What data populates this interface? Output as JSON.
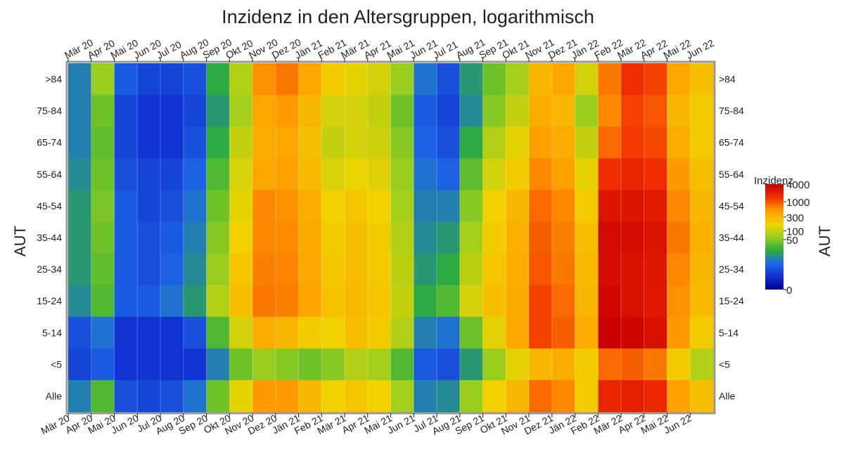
{
  "chart_data": {
    "type": "heatmap",
    "title": "Inzidenz in den Altersgruppen, logarithmisch",
    "ylabel_left": "AUT",
    "ylabel_right": "AUT",
    "colorbar": {
      "title": "Inzidenz",
      "ticks": [
        "4000",
        "1000",
        "300",
        "100",
        "50",
        "0"
      ],
      "tick_values": [
        4000,
        1000,
        300,
        100,
        50,
        0
      ],
      "scale": "log",
      "colors": [
        "#00008b",
        "#1030d0",
        "#1e6ae6",
        "#2fae3a",
        "#9dcf1e",
        "#f2d200",
        "#ff9a00",
        "#f03000",
        "#c80000"
      ]
    },
    "x_ticks": [
      "Mär 20",
      "Apr 20",
      "Mai 20",
      "Jun 20",
      "Jul 20",
      "Aug 20",
      "Sep 20",
      "Okt 20",
      "Nov 20",
      "Dez 20",
      "Jän 21",
      "Feb 21",
      "Mär 21",
      "Apr 21",
      "Mai 21",
      "Jun 21",
      "Jul 21",
      "Aug 21",
      "Sep 21",
      "Okt 21",
      "Nov 21",
      "Dez 21",
      "Jän 22",
      "Feb 22",
      "Mär 22",
      "Apr 22",
      "Mai 22",
      "Jun 22"
    ],
    "rows": [
      ">84",
      "75-84",
      "65-74",
      "55-64",
      "45-54",
      "35-44",
      "25-34",
      "15-24",
      "5-14",
      "<5",
      "Alle"
    ],
    "months": [
      "2020-03",
      "2020-04",
      "2020-05",
      "2020-06",
      "2020-07",
      "2020-08",
      "2020-09",
      "2020-10",
      "2020-11",
      "2020-12",
      "2021-01",
      "2021-02",
      "2021-03",
      "2021-04",
      "2021-05",
      "2021-06",
      "2021-07",
      "2021-08",
      "2021-09",
      "2021-10",
      "2021-11",
      "2021-12",
      "2022-01",
      "2022-02",
      "2022-03",
      "2022-04",
      "2022-05",
      "2022-06"
    ],
    "values": [
      [
        10,
        60,
        5,
        3,
        3,
        4,
        20,
        80,
        550,
        700,
        400,
        200,
        150,
        120,
        60,
        8,
        4,
        15,
        40,
        70,
        300,
        400,
        120,
        700,
        1500,
        1200,
        400,
        250
      ],
      [
        10,
        40,
        3,
        2,
        2,
        3,
        15,
        70,
        400,
        500,
        300,
        120,
        120,
        100,
        40,
        5,
        3,
        12,
        50,
        100,
        350,
        300,
        60,
        600,
        1200,
        1000,
        300,
        200
      ],
      [
        10,
        35,
        3,
        2,
        2,
        4,
        20,
        100,
        350,
        400,
        250,
        100,
        120,
        110,
        50,
        6,
        4,
        20,
        80,
        150,
        450,
        350,
        100,
        800,
        1300,
        1100,
        350,
        200
      ],
      [
        12,
        40,
        4,
        3,
        3,
        6,
        30,
        130,
        400,
        450,
        280,
        130,
        160,
        140,
        60,
        8,
        6,
        35,
        120,
        200,
        600,
        450,
        150,
        1500,
        1800,
        1500,
        500,
        250
      ],
      [
        15,
        45,
        5,
        3,
        4,
        8,
        40,
        150,
        600,
        550,
        350,
        180,
        220,
        180,
        70,
        10,
        10,
        50,
        180,
        300,
        800,
        600,
        200,
        2500,
        2500,
        2200,
        600,
        300
      ],
      [
        15,
        40,
        5,
        4,
        5,
        10,
        50,
        180,
        600,
        580,
        380,
        200,
        250,
        200,
        80,
        12,
        15,
        70,
        200,
        330,
        900,
        650,
        250,
        3200,
        3000,
        2600,
        700,
        320
      ],
      [
        15,
        35,
        5,
        4,
        6,
        12,
        60,
        220,
        650,
        620,
        400,
        220,
        260,
        210,
        90,
        15,
        20,
        90,
        220,
        350,
        1000,
        700,
        280,
        3000,
        2800,
        2400,
        600,
        300
      ],
      [
        12,
        30,
        5,
        5,
        8,
        15,
        80,
        250,
        700,
        650,
        420,
        240,
        280,
        220,
        100,
        20,
        30,
        120,
        250,
        380,
        1200,
        800,
        300,
        3300,
        2700,
        2300,
        550,
        280
      ],
      [
        4,
        8,
        2,
        2,
        2,
        4,
        30,
        120,
        350,
        300,
        200,
        180,
        250,
        200,
        80,
        10,
        8,
        40,
        150,
        400,
        1200,
        900,
        350,
        4000,
        3500,
        2800,
        500,
        200
      ],
      [
        3,
        5,
        2,
        2,
        2,
        2,
        10,
        40,
        60,
        50,
        40,
        50,
        80,
        70,
        30,
        5,
        4,
        15,
        60,
        150,
        300,
        350,
        200,
        800,
        900,
        700,
        200,
        80
      ],
      [
        10,
        30,
        4,
        3,
        4,
        8,
        40,
        150,
        500,
        500,
        300,
        180,
        220,
        180,
        70,
        10,
        12,
        60,
        180,
        300,
        800,
        600,
        200,
        1800,
        2000,
        1700,
        450,
        250
      ]
    ]
  }
}
